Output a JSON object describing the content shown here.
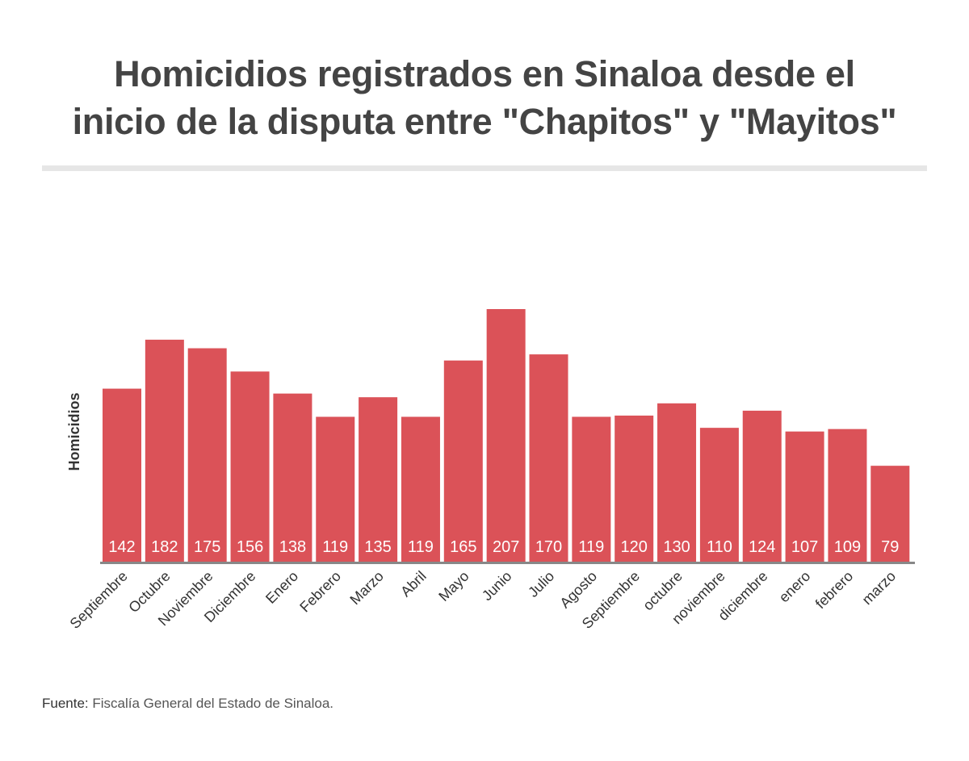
{
  "title_line1": "Homicidios registrados en Sinaloa desde el",
  "title_line2": "inicio de la disputa entre \"Chapitos\" y \"Mayitos\"",
  "source_label": "Fuente:",
  "source_text": "Fiscalía General del Estado de Sinaloa.",
  "chart_data": {
    "type": "bar",
    "title": "Homicidios registrados en Sinaloa desde el inicio de la disputa entre \"Chapitos\" y \"Mayitos\"",
    "xlabel": "",
    "ylabel": "Homicidios",
    "categories": [
      "Septiembre",
      "Octubre",
      "Noviembre",
      "Diciembre",
      "Enero",
      "Febrero",
      "Marzo",
      "Abril",
      "Mayo",
      "Junio",
      "Julio",
      "Agosto",
      "Septiembre",
      "octubre",
      "noviembre",
      "diciembre",
      "enero",
      "febrero",
      "marzo"
    ],
    "values": [
      142,
      182,
      175,
      156,
      138,
      119,
      135,
      119,
      165,
      207,
      170,
      119,
      120,
      130,
      110,
      124,
      107,
      109,
      79
    ],
    "data_labels": true,
    "grid": false,
    "bar_color": "#db5258",
    "label_color": "#ffffff",
    "baseline_color": "#888888"
  }
}
